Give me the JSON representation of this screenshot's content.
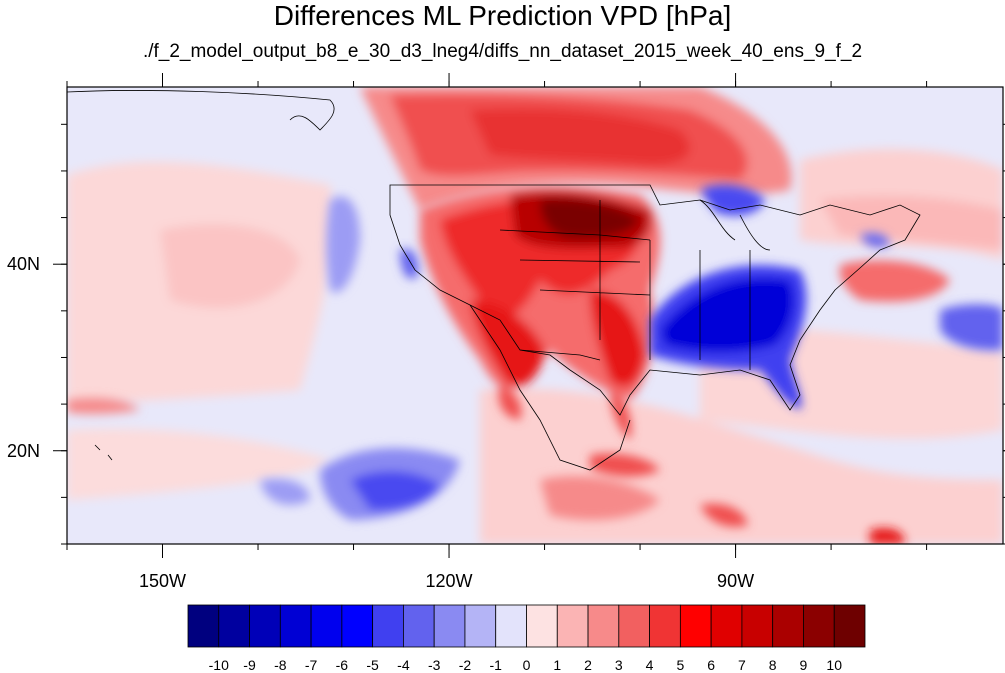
{
  "title": "Differences ML Prediction VPD [hPa]",
  "subtitle": "./f_2_model_output_b8_e_30_d3_lneg4/diffs_nn_dataset_2015_week_40_ens_9_f_2",
  "map": {
    "lon_range": [
      -160,
      -62
    ],
    "lat_range": [
      10,
      59
    ],
    "x_ticks": [
      {
        "lon": -150,
        "label": "150W"
      },
      {
        "lon": -120,
        "label": "120W"
      },
      {
        "lon": -90,
        "label": "90W"
      }
    ],
    "y_ticks": [
      {
        "lat": 40,
        "label": "40N"
      },
      {
        "lat": 20,
        "label": "20N"
      }
    ],
    "minor_lon_step": 10,
    "minor_lat_step": 5
  },
  "colorbar": {
    "levels": [
      "-10",
      "-9",
      "-8",
      "-7",
      "-6",
      "-5",
      "-4",
      "-3",
      "-2",
      "-1",
      "0",
      "1",
      "2",
      "3",
      "4",
      "5",
      "6",
      "7",
      "8",
      "9",
      "10"
    ],
    "colors": [
      "#00007f",
      "#00009f",
      "#0000b8",
      "#0000d4",
      "#0000ee",
      "#0000ff",
      "#4040f0",
      "#6262ee",
      "#8a8af2",
      "#b4b4f6",
      "#e3e3fb",
      "#fde2e2",
      "#fbb4b4",
      "#f78a8a",
      "#f26060",
      "#f03434",
      "#ff0000",
      "#e00000",
      "#c80000",
      "#aa0000",
      "#8b0000",
      "#6e0000"
    ]
  }
}
